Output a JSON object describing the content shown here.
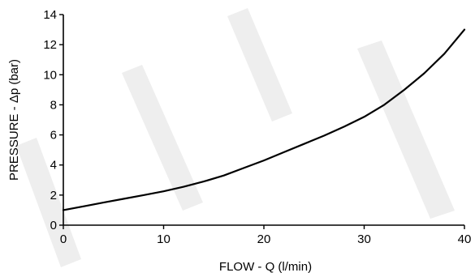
{
  "chart_data": {
    "type": "line",
    "title": "",
    "xlabel": "FLOW - Q (l/min)",
    "ylabel": "PRESSURE - Δp (bar)",
    "xlim": [
      0,
      40
    ],
    "ylim": [
      0,
      14
    ],
    "x_ticks": [
      "0",
      "10",
      "20",
      "30",
      "40"
    ],
    "y_ticks": [
      "0",
      "2",
      "4",
      "6",
      "8",
      "10",
      "12",
      "14"
    ],
    "grid": false,
    "legend": "none",
    "series": [
      {
        "x": [
          0,
          2,
          4,
          6,
          8,
          10,
          12,
          14,
          16,
          18,
          20,
          22,
          24,
          26,
          28,
          30,
          32,
          34,
          36,
          38,
          40
        ],
        "y": [
          1.0,
          1.25,
          1.5,
          1.75,
          2.0,
          2.25,
          2.55,
          2.9,
          3.3,
          3.8,
          4.3,
          4.85,
          5.4,
          5.95,
          6.55,
          7.2,
          8.0,
          9.0,
          10.1,
          11.4,
          13.0
        ],
        "color": "#000000"
      }
    ]
  }
}
